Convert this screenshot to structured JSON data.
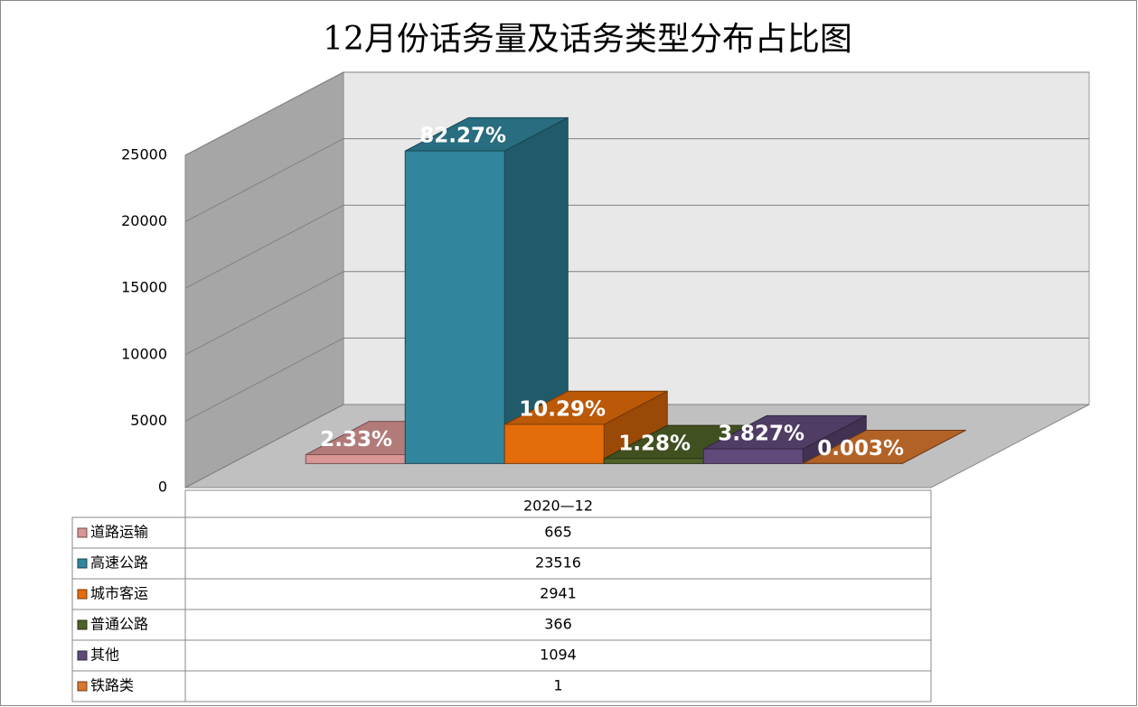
{
  "chart_data": {
    "type": "bar3d",
    "title": "12月份话务量及话务类型分布占比图",
    "categories": [
      "2020—12"
    ],
    "ylim": [
      0,
      25000
    ],
    "yticks": [
      0,
      5000,
      10000,
      15000,
      20000,
      25000
    ],
    "grid": true,
    "data_table": true,
    "series": [
      {
        "name": "道路运输",
        "color": "#d99694",
        "values": [
          665
        ],
        "share_labels": [
          "2.33%"
        ]
      },
      {
        "name": "高速公路",
        "color": "#31859c",
        "values": [
          23516
        ],
        "share_labels": [
          "82.27%"
        ]
      },
      {
        "name": "城市客运",
        "color": "#e46c0a",
        "values": [
          2941
        ],
        "share_labels": [
          "10.29%"
        ]
      },
      {
        "name": "普通公路",
        "color": "#4f6228",
        "values": [
          366
        ],
        "share_labels": [
          "1.28%"
        ]
      },
      {
        "name": "其他",
        "color": "#604a7b",
        "values": [
          1094
        ],
        "share_labels": [
          "3.827%"
        ]
      },
      {
        "name": "铁路类",
        "color": "#d9782f",
        "values": [
          1
        ],
        "share_labels": [
          "0.003%"
        ]
      }
    ]
  }
}
